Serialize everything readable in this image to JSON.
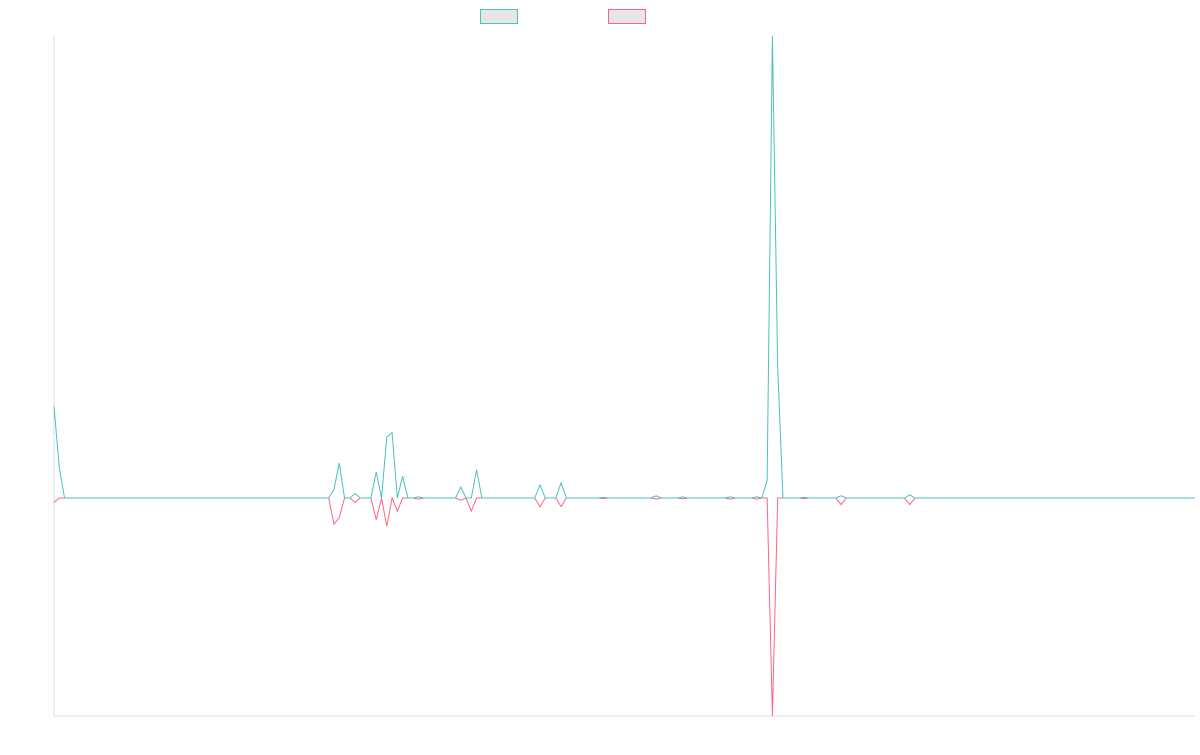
{
  "chart_data": {
    "type": "line",
    "title": "",
    "xlabel": "",
    "ylabel": "",
    "x_count": 217,
    "ylim": [
      -100,
      100
    ],
    "grid": false,
    "legend_position": "top-center",
    "colors": {
      "series_a": "#4bc0c0",
      "series_b": "#ff6384",
      "legend_fill": "#e6e6e6",
      "axis": "#dddddd"
    },
    "series": [
      {
        "name": "",
        "color": "#4bc0c0",
        "baseline": 0,
        "points": [
          [
            0,
            42
          ],
          [
            1,
            14
          ],
          [
            2,
            0
          ],
          [
            52,
            0
          ],
          [
            53,
            4
          ],
          [
            54,
            16
          ],
          [
            55,
            0
          ],
          [
            56,
            0
          ],
          [
            57,
            2
          ],
          [
            58,
            0
          ],
          [
            59,
            0
          ],
          [
            60,
            0
          ],
          [
            61,
            12
          ],
          [
            62,
            0
          ],
          [
            63,
            28
          ],
          [
            64,
            30
          ],
          [
            65,
            0
          ],
          [
            66,
            10
          ],
          [
            67,
            0
          ],
          [
            68,
            0
          ],
          [
            69,
            0.5
          ],
          [
            70,
            0
          ],
          [
            76,
            0
          ],
          [
            77,
            5
          ],
          [
            78,
            0
          ],
          [
            79,
            0
          ],
          [
            80,
            13
          ],
          [
            81,
            0
          ],
          [
            91,
            0
          ],
          [
            92,
            6
          ],
          [
            93,
            0
          ],
          [
            95,
            0
          ],
          [
            96,
            7
          ],
          [
            97,
            0
          ],
          [
            103,
            0
          ],
          [
            104,
            0.3
          ],
          [
            105,
            0
          ],
          [
            113,
            0
          ],
          [
            114,
            1
          ],
          [
            115,
            0
          ],
          [
            118,
            0
          ],
          [
            119,
            0.5
          ],
          [
            120,
            0
          ],
          [
            127,
            0
          ],
          [
            128,
            0.5
          ],
          [
            129,
            0
          ],
          [
            132,
            0
          ],
          [
            133,
            0.5
          ],
          [
            134,
            0
          ],
          [
            135,
            8
          ],
          [
            136,
            212
          ],
          [
            137,
            60
          ],
          [
            138,
            0
          ],
          [
            141,
            0
          ],
          [
            142,
            0.3
          ],
          [
            143,
            0
          ],
          [
            148,
            0
          ],
          [
            149,
            1
          ],
          [
            150,
            0
          ],
          [
            161,
            0
          ],
          [
            162,
            1.5
          ],
          [
            163,
            0
          ],
          [
            216,
            0
          ]
        ]
      },
      {
        "name": "",
        "color": "#ff6384",
        "baseline": 0,
        "points": [
          [
            0,
            -2
          ],
          [
            1,
            0
          ],
          [
            2,
            0
          ],
          [
            52,
            0
          ],
          [
            53,
            -12
          ],
          [
            54,
            -9
          ],
          [
            55,
            0
          ],
          [
            56,
            0
          ],
          [
            57,
            -2
          ],
          [
            58,
            0
          ],
          [
            59,
            0
          ],
          [
            60,
            0
          ],
          [
            61,
            -10
          ],
          [
            62,
            0
          ],
          [
            63,
            -13
          ],
          [
            64,
            0
          ],
          [
            65,
            -6
          ],
          [
            66,
            0
          ],
          [
            67,
            0
          ],
          [
            68,
            0
          ],
          [
            69,
            -0.5
          ],
          [
            70,
            0
          ],
          [
            76,
            0
          ],
          [
            77,
            -1
          ],
          [
            78,
            0
          ],
          [
            79,
            -6
          ],
          [
            80,
            0
          ],
          [
            91,
            0
          ],
          [
            92,
            -4
          ],
          [
            93,
            0
          ],
          [
            95,
            0
          ],
          [
            96,
            -4
          ],
          [
            97,
            0
          ],
          [
            103,
            0
          ],
          [
            104,
            -0.3
          ],
          [
            105,
            0
          ],
          [
            113,
            0
          ],
          [
            114,
            -0.5
          ],
          [
            115,
            0
          ],
          [
            118,
            0
          ],
          [
            119,
            -0.3
          ],
          [
            120,
            0
          ],
          [
            127,
            0
          ],
          [
            128,
            -0.5
          ],
          [
            129,
            0
          ],
          [
            132,
            0
          ],
          [
            133,
            -0.5
          ],
          [
            134,
            0
          ],
          [
            135,
            0
          ],
          [
            136,
            -100
          ],
          [
            137,
            0
          ],
          [
            141,
            0
          ],
          [
            142,
            -0.3
          ],
          [
            143,
            0
          ],
          [
            148,
            0
          ],
          [
            149,
            -3
          ],
          [
            150,
            0
          ],
          [
            161,
            0
          ],
          [
            162,
            -3
          ],
          [
            163,
            0
          ],
          [
            216,
            0
          ]
        ]
      }
    ]
  }
}
